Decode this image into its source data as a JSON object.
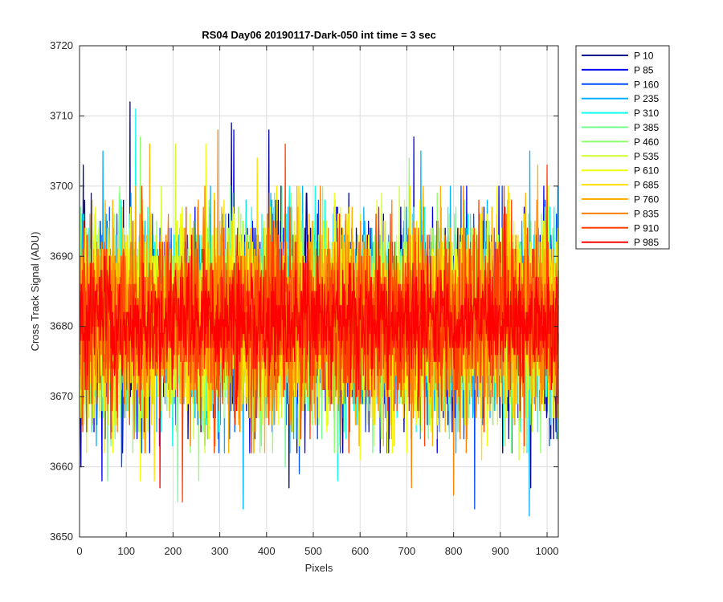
{
  "chart_data": {
    "type": "line",
    "title": "RS04 Day06 20190117-Dark-050 int time = 3 sec",
    "xlabel": "Pixels",
    "ylabel": "Cross Track Signal (ADU)",
    "xlim": [
      0,
      1024
    ],
    "ylim": [
      3650,
      3720
    ],
    "xticks": [
      0,
      100,
      200,
      300,
      400,
      500,
      600,
      700,
      800,
      900,
      1000
    ],
    "yticks": [
      3650,
      3660,
      3670,
      3680,
      3690,
      3700,
      3710,
      3720
    ],
    "grid": true,
    "legend_position": "outside-top-right",
    "x_sampling": {
      "start": 1,
      "end": 1024,
      "step": 1
    },
    "series": [
      {
        "name": "P 10",
        "color": "#00008f",
        "mean": 3681,
        "sd": 6.8,
        "extremes": [
          [
            3,
            3660
          ],
          [
            8,
            3703
          ],
          [
            108,
            3712
          ],
          [
            325,
            3709
          ],
          [
            405,
            3708
          ],
          [
            448,
            3657
          ],
          [
            965,
            3657
          ]
        ]
      },
      {
        "name": "P 85",
        "color": "#0000ef",
        "mean": 3681,
        "sd": 6.8,
        "extremes": [
          [
            48,
            3658
          ],
          [
            330,
            3708
          ],
          [
            715,
            3707
          ]
        ]
      },
      {
        "name": "P 160",
        "color": "#004fff",
        "mean": 3681,
        "sd": 6.8,
        "extremes": [
          [
            90,
            3660
          ],
          [
            470,
            3659
          ],
          [
            845,
            3654
          ]
        ]
      },
      {
        "name": "P 235",
        "color": "#00afff",
        "mean": 3681,
        "sd": 6.8,
        "extremes": [
          [
            50,
            3705
          ],
          [
            350,
            3654
          ],
          [
            730,
            3705
          ],
          [
            962,
            3653
          ],
          [
            963,
            3705
          ]
        ]
      },
      {
        "name": "P 310",
        "color": "#0fffef",
        "mean": 3681,
        "sd": 6.8,
        "extremes": [
          [
            120,
            3711
          ],
          [
            552,
            3658
          ],
          [
            720,
            3665
          ]
        ]
      },
      {
        "name": "P 385",
        "color": "#6fff8f",
        "mean": 3681,
        "sd": 6.8,
        "extremes": [
          [
            60,
            3658
          ],
          [
            210,
            3655
          ],
          [
            440,
            3660
          ]
        ]
      },
      {
        "name": "P 460",
        "color": "#8fff6f",
        "mean": 3681,
        "sd": 6.8,
        "extremes": [
          [
            130,
            3707
          ],
          [
            255,
            3658
          ],
          [
            705,
            3704
          ]
        ]
      },
      {
        "name": "P 535",
        "color": "#cfff2f",
        "mean": 3681,
        "sd": 6.8,
        "extremes": [
          [
            205,
            3706
          ],
          [
            470,
            3663
          ],
          [
            940,
            3661
          ]
        ]
      },
      {
        "name": "P 610",
        "color": "#efff0f",
        "mean": 3681,
        "sd": 6.8,
        "extremes": [
          [
            130,
            3658
          ],
          [
            270,
            3706
          ],
          [
            600,
            3661
          ]
        ]
      },
      {
        "name": "P 685",
        "color": "#ffdf00",
        "mean": 3681,
        "sd": 6.8,
        "extremes": [
          [
            160,
            3658
          ],
          [
            380,
            3704
          ],
          [
            860,
            3661
          ]
        ]
      },
      {
        "name": "P 760",
        "color": "#ffaf00",
        "mean": 3681,
        "sd": 6.8,
        "extremes": [
          [
            150,
            3706
          ],
          [
            650,
            3663
          ],
          [
            980,
            3703
          ]
        ]
      },
      {
        "name": "P 835",
        "color": "#ff7f00",
        "mean": 3681,
        "sd": 6.8,
        "extremes": [
          [
            296,
            3708
          ],
          [
            800,
            3656
          ],
          [
            710,
            3657
          ]
        ]
      },
      {
        "name": "P 910",
        "color": "#ff3f00",
        "mean": 3681,
        "sd": 6.8,
        "extremes": [
          [
            220,
            3655
          ],
          [
            440,
            3706
          ],
          [
            1000,
            3703
          ]
        ]
      },
      {
        "name": "P 985",
        "color": "#ff0000",
        "mean": 3681,
        "sd": 4.0,
        "extremes": [
          [
            172,
            3657
          ],
          [
            640,
            3697
          ],
          [
            910,
            3697
          ]
        ]
      }
    ]
  }
}
